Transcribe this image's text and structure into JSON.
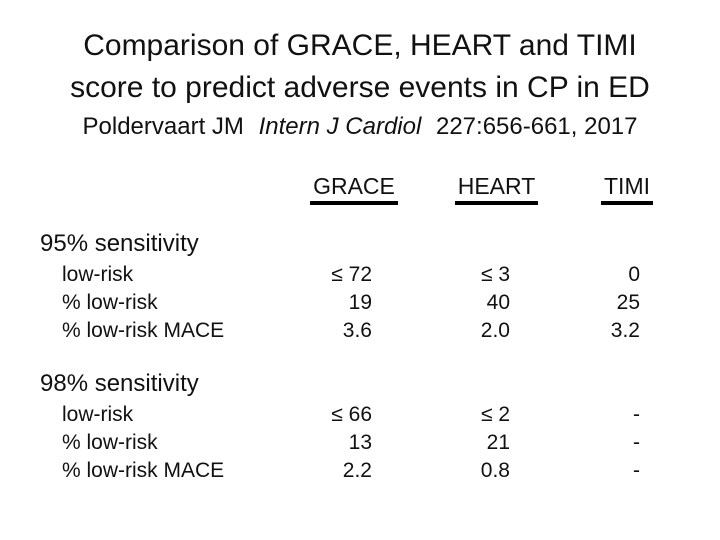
{
  "slide": {
    "title_line1": "Comparison of GRACE, HEART and TIMI",
    "title_line2": "score to predict adverse events in CP in ED",
    "citation": {
      "authors": "Poldervaart JM",
      "journal": "Intern J Cardiol",
      "reference": "227:656-661, 2017"
    }
  },
  "table": {
    "columns": [
      "GRACE",
      "HEART",
      "TIMI"
    ],
    "sections": [
      {
        "heading": "95% sensitivity",
        "rows": [
          {
            "label": "low-risk",
            "values": [
              "≤ 72",
              "≤ 3",
              "0"
            ]
          },
          {
            "label": "% low-risk",
            "values": [
              "19",
              "40",
              "25"
            ]
          },
          {
            "label": "% low-risk MACE",
            "values": [
              "3.6",
              "2.0",
              "3.2"
            ]
          }
        ]
      },
      {
        "heading": "98% sensitivity",
        "rows": [
          {
            "label": "low-risk",
            "values": [
              "≤ 66",
              "≤ 2",
              "-"
            ]
          },
          {
            "label": "% low-risk",
            "values": [
              "13",
              "21",
              "-"
            ]
          },
          {
            "label": "% low-risk MACE",
            "values": [
              "2.2",
              "0.8",
              "-"
            ]
          }
        ]
      }
    ]
  },
  "colors": {
    "background": "#ffffff",
    "text": "#111111"
  }
}
